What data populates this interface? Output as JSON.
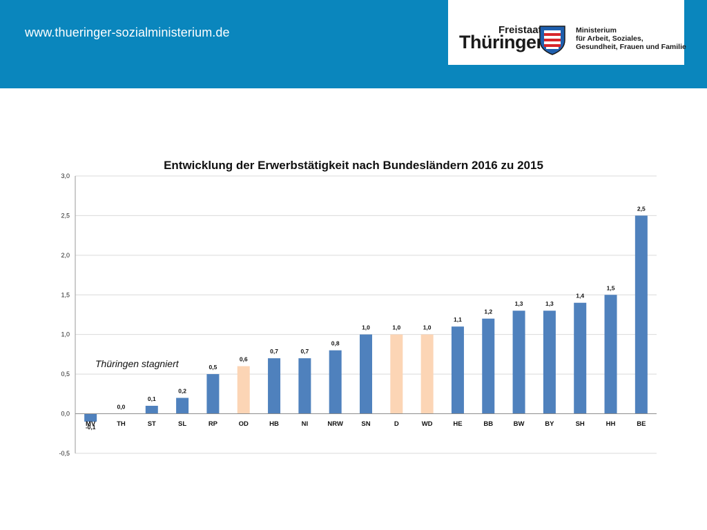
{
  "header": {
    "url": "www.thueringer-sozialministerium.de",
    "logo": {
      "freistaat": "Freistaat",
      "name": "Thüringen",
      "ministry_lines": [
        "Ministerium",
        "für Arbeit, Soziales,",
        "Gesundheit, Frauen und Familie"
      ],
      "shield_icon": "thuringia-coat-of-arms-icon"
    },
    "bg_color": "#0a86bd"
  },
  "chart_data": {
    "type": "bar",
    "title": "Entwicklung der Erwerbstätigkeit nach Bundesländern 2016 zu 2015",
    "categories": [
      "MV",
      "TH",
      "ST",
      "SL",
      "RP",
      "OD",
      "HB",
      "NI",
      "NRW",
      "SN",
      "D",
      "WD",
      "HE",
      "BB",
      "BW",
      "BY",
      "SH",
      "HH",
      "BE"
    ],
    "values": [
      -0.1,
      0.0,
      0.1,
      0.2,
      0.5,
      0.6,
      0.7,
      0.7,
      0.8,
      1.0,
      1.0,
      1.0,
      1.1,
      1.2,
      1.3,
      1.3,
      1.4,
      1.5,
      2.5
    ],
    "value_labels": [
      "-0,1",
      "0,0",
      "0,1",
      "0,2",
      "0,5",
      "0,6",
      "0,7",
      "0,7",
      "0,8",
      "1,0",
      "1,0",
      "1,0",
      "1,1",
      "1,2",
      "1,3",
      "1,3",
      "1,4",
      "1,5",
      "2,5"
    ],
    "highlighted": [
      "OD",
      "D",
      "WD"
    ],
    "colors": {
      "default": "#4f81bd",
      "highlight": "#fcd5b5"
    },
    "ylim": [
      -0.5,
      3.0
    ],
    "yticks": [
      -0.5,
      0.0,
      0.5,
      1.0,
      1.5,
      2.0,
      2.5,
      3.0
    ],
    "ytick_labels": [
      "-0,5",
      "0,0",
      "0,5",
      "1,0",
      "1,5",
      "2,0",
      "2,5",
      "3,0"
    ],
    "grid": "horizontal",
    "annotation": "Thüringen stagniert",
    "xlabel": "",
    "ylabel": ""
  }
}
